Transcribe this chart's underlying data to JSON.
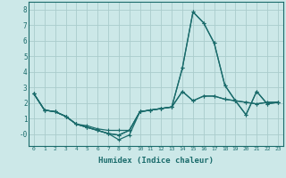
{
  "xlabel": "Humidex (Indice chaleur)",
  "background_color": "#cce8e8",
  "grid_color": "#aacccc",
  "line_color": "#1a6b6b",
  "xlim": [
    -0.5,
    23.5
  ],
  "ylim": [
    -0.75,
    8.5
  ],
  "xticks": [
    0,
    1,
    2,
    3,
    4,
    5,
    6,
    7,
    8,
    9,
    10,
    11,
    12,
    13,
    14,
    15,
    16,
    17,
    18,
    19,
    20,
    21,
    22,
    23
  ],
  "yticks": [
    0,
    1,
    2,
    3,
    4,
    5,
    6,
    7,
    8
  ],
  "ytick_labels": [
    "-0",
    "1",
    "2",
    "3",
    "4",
    "5",
    "6",
    "7",
    "8"
  ],
  "series": [
    [
      2.6,
      1.55,
      1.45,
      1.15,
      0.65,
      0.55,
      0.35,
      0.25,
      0.25,
      0.25,
      1.45,
      1.55,
      1.65,
      1.75,
      2.75,
      2.15,
      2.45,
      2.45,
      2.25,
      2.15,
      2.05,
      1.95,
      2.05,
      2.05
    ],
    [
      2.6,
      1.55,
      1.45,
      1.15,
      0.65,
      0.45,
      0.25,
      0.05,
      -0.05,
      0.25,
      1.45,
      1.55,
      1.65,
      1.75,
      4.25,
      7.85,
      7.15,
      5.85,
      3.15,
      2.15,
      1.25,
      2.75,
      1.95,
      2.05
    ],
    [
      2.6,
      1.55,
      1.45,
      1.15,
      0.65,
      0.45,
      0.25,
      0.05,
      -0.35,
      -0.05,
      1.45,
      1.55,
      1.65,
      1.75,
      4.25,
      7.85,
      7.15,
      5.85,
      3.15,
      2.15,
      1.25,
      2.75,
      1.95,
      2.05
    ],
    [
      2.6,
      1.55,
      1.45,
      1.15,
      0.65,
      0.45,
      0.25,
      0.05,
      -0.05,
      0.25,
      1.45,
      1.55,
      1.65,
      1.75,
      2.75,
      2.15,
      2.45,
      2.45,
      2.25,
      2.15,
      2.05,
      1.95,
      2.05,
      2.05
    ]
  ],
  "marker": "+",
  "markersize": 3,
  "linewidth": 0.9
}
